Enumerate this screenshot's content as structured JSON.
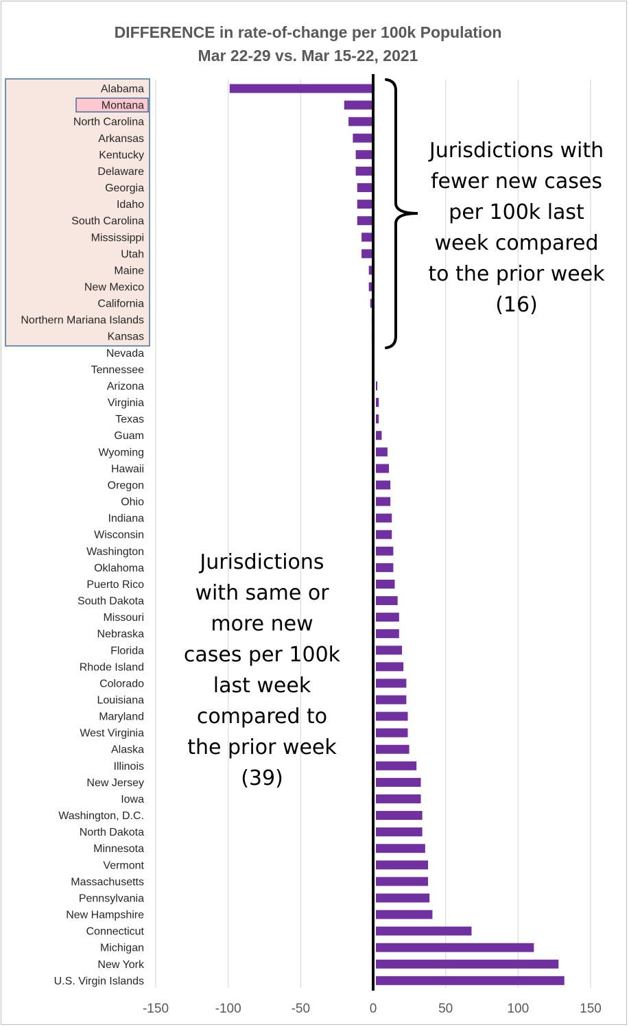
{
  "chart_data": {
    "type": "bar",
    "orientation": "horizontal",
    "title": [
      "DIFFERENCE in rate-of-change per 100k Population",
      "Mar 22-29 vs. Mar 15-22, 2021"
    ],
    "xlim": [
      -150,
      150
    ],
    "xticks": [
      -150,
      -100,
      -50,
      0,
      50,
      100,
      150
    ],
    "xtick_labels": [
      "-150",
      "-100",
      "-50",
      "0",
      "50",
      "100",
      "150"
    ],
    "grid": "vertical",
    "bar_color": "#7030a0",
    "highlight_color": "#ffc7ce",
    "box_color": "#f8e6e0",
    "categories": [
      "Alabama",
      "Montana",
      "North Carolina",
      "Arkansas",
      "Kentucky",
      "Delaware",
      "Georgia",
      "Idaho",
      "South Carolina",
      "Mississippi",
      "Utah",
      "Maine",
      "New Mexico",
      "California",
      "Northern Mariana Islands",
      "Kansas",
      "Nevada",
      "Tennessee",
      "Arizona",
      "Virginia",
      "Texas",
      "Guam",
      "Wyoming",
      "Hawaii",
      "Oregon",
      "Ohio",
      "Indiana",
      "Wisconsin",
      "Washington",
      "Oklahoma",
      "Puerto Rico",
      "South Dakota",
      "Missouri",
      "Nebraska",
      "Florida",
      "Rhode Island",
      "Colorado",
      "Louisiana",
      "Maryland",
      "West Virginia",
      "Alaska",
      "Illinois",
      "New Jersey",
      "Iowa",
      "Washington, D.C.",
      "North Dakota",
      "Minnesota",
      "Vermont",
      "Massachusetts",
      "Pennsylvania",
      "New Hampshire",
      "Connecticut",
      "Michigan",
      "New York",
      "U.S. Virgin Islands"
    ],
    "values": [
      -99,
      -20,
      -17,
      -14,
      -12,
      -12,
      -11,
      -11,
      -11,
      -8,
      -8,
      -3,
      -3,
      -2,
      -1,
      -1,
      0,
      0,
      1,
      2,
      2,
      4,
      8,
      9,
      10,
      10,
      11,
      11,
      12,
      12,
      13,
      15,
      16,
      16,
      18,
      19,
      21,
      21,
      22,
      22,
      23,
      28,
      31,
      31,
      32,
      32,
      34,
      36,
      36,
      37,
      39,
      66,
      109,
      126,
      130
    ],
    "highlighted": [
      "Montana"
    ],
    "annotations": [
      {
        "lines": [
          "Jurisdictions with",
          "fewer new cases",
          "per 100k last",
          "week compared",
          "to the prior week",
          "(16)"
        ]
      },
      {
        "lines": [
          "Jurisdictions",
          "with same or",
          "more new",
          "cases per 100k",
          "last week",
          "compared to",
          "the prior week",
          "(39)"
        ]
      }
    ]
  }
}
